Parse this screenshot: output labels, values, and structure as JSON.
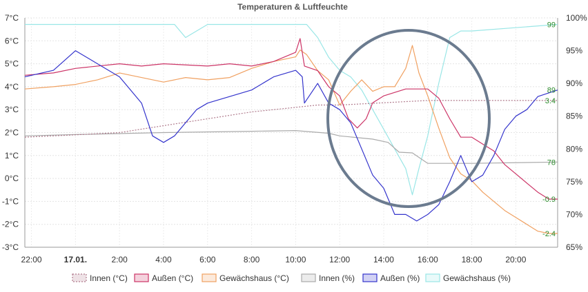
{
  "chart_data": {
    "type": "line",
    "title": "Temperaturen & Luftfeuchte",
    "x_ticks": [
      "22:00",
      "17.01.",
      "2:00",
      "4:00",
      "6:00",
      "8:00",
      "10:00",
      "12:00",
      "14:00",
      "16:00",
      "18:00",
      "20:00"
    ],
    "x_tick_bold": "17.01.",
    "x_range_hours": [
      -2.3,
      21.9
    ],
    "y_left": {
      "ticks": [
        "7°C",
        "6°C",
        "5°C",
        "4°C",
        "3°C",
        "2°C",
        "1°C",
        "0°C",
        "-1°C",
        "-2°C",
        "-3°C"
      ],
      "range": [
        -3,
        7
      ]
    },
    "y_right": {
      "ticks": [
        "100%",
        "95%",
        "90%",
        "85%",
        "80%",
        "75%",
        "70%",
        "65%"
      ],
      "range": [
        65,
        100
      ]
    },
    "series": [
      {
        "name": "Innen (°C)",
        "axis": "left",
        "color": "#b07a8c",
        "dashed": true,
        "points": [
          [
            -2.3,
            1.8
          ],
          [
            0,
            1.9
          ],
          [
            2,
            2.0
          ],
          [
            4,
            2.3
          ],
          [
            6,
            2.6
          ],
          [
            8,
            2.9
          ],
          [
            10,
            3.1
          ],
          [
            11,
            3.2
          ],
          [
            12,
            3.2
          ],
          [
            14,
            3.3
          ],
          [
            16,
            3.4
          ],
          [
            18,
            3.4
          ],
          [
            20,
            3.4
          ],
          [
            21.9,
            3.4
          ]
        ]
      },
      {
        "name": "Außen (°C)",
        "axis": "left",
        "color": "#cc3366",
        "points": [
          [
            -2.3,
            4.5
          ],
          [
            -1,
            4.6
          ],
          [
            0,
            4.8
          ],
          [
            2,
            5.0
          ],
          [
            3,
            4.9
          ],
          [
            4,
            5.0
          ],
          [
            6,
            4.9
          ],
          [
            7,
            5.0
          ],
          [
            8,
            4.9
          ],
          [
            9,
            5.1
          ],
          [
            10,
            5.5
          ],
          [
            10.2,
            6.1
          ],
          [
            10.4,
            4.9
          ],
          [
            11,
            4.7
          ],
          [
            11.5,
            4.0
          ],
          [
            12,
            3.6
          ],
          [
            12.4,
            2.6
          ],
          [
            12.8,
            2.2
          ],
          [
            13.2,
            2.6
          ],
          [
            13.5,
            3.3
          ],
          [
            14,
            3.6
          ],
          [
            15,
            3.9
          ],
          [
            16,
            3.9
          ],
          [
            16.5,
            3.5
          ],
          [
            17,
            2.6
          ],
          [
            17.5,
            1.8
          ],
          [
            18,
            1.8
          ],
          [
            18.5,
            1.5
          ],
          [
            19,
            1.2
          ],
          [
            19.5,
            0.6
          ],
          [
            20,
            0.2
          ],
          [
            20.5,
            -0.2
          ],
          [
            21,
            -0.6
          ],
          [
            21.5,
            -0.9
          ],
          [
            21.9,
            -0.9
          ]
        ]
      },
      {
        "name": "Gewächshaus (°C)",
        "axis": "left",
        "color": "#f0a060",
        "points": [
          [
            -2.3,
            3.9
          ],
          [
            -1,
            4.0
          ],
          [
            0,
            4.1
          ],
          [
            1,
            4.3
          ],
          [
            2,
            4.6
          ],
          [
            3,
            4.4
          ],
          [
            4,
            4.2
          ],
          [
            5,
            4.4
          ],
          [
            6,
            4.3
          ],
          [
            7,
            4.4
          ],
          [
            8,
            4.8
          ],
          [
            9,
            5.1
          ],
          [
            10,
            5.3
          ],
          [
            10.2,
            5.6
          ],
          [
            10.5,
            5.4
          ],
          [
            11,
            4.7
          ],
          [
            11.5,
            4.3
          ],
          [
            12,
            3.2
          ],
          [
            12.5,
            3.8
          ],
          [
            13,
            4.3
          ],
          [
            13.5,
            3.8
          ],
          [
            14,
            4.0
          ],
          [
            14.5,
            4.0
          ],
          [
            15,
            4.8
          ],
          [
            15.3,
            5.8
          ],
          [
            15.6,
            4.6
          ],
          [
            16,
            3.6
          ],
          [
            16.5,
            2.2
          ],
          [
            17,
            0.9
          ],
          [
            17.5,
            0.2
          ],
          [
            18,
            -0.1
          ],
          [
            18.5,
            -0.6
          ],
          [
            19,
            -1.0
          ],
          [
            19.5,
            -1.4
          ],
          [
            20,
            -1.7
          ],
          [
            20.5,
            -2.0
          ],
          [
            21,
            -2.3
          ],
          [
            21.5,
            -2.4
          ],
          [
            21.9,
            -2.4
          ]
        ]
      },
      {
        "name": "Innen (%)",
        "axis": "right",
        "color": "#aaaaaa",
        "points": [
          [
            -2.3,
            82
          ],
          [
            0,
            82.2
          ],
          [
            4,
            82.5
          ],
          [
            8,
            82.7
          ],
          [
            10,
            82.8
          ],
          [
            11.5,
            82.4
          ],
          [
            12,
            82
          ],
          [
            13.5,
            81.5
          ],
          [
            14.2,
            81
          ],
          [
            14.7,
            79.5
          ],
          [
            15.3,
            79.4
          ],
          [
            16,
            77.8
          ],
          [
            18,
            77.8
          ],
          [
            21.9,
            78
          ]
        ]
      },
      {
        "name": "Außen (%)",
        "axis": "right",
        "color": "#3333cc",
        "points": [
          [
            -2.3,
            91
          ],
          [
            -1,
            92
          ],
          [
            0,
            95
          ],
          [
            1,
            93
          ],
          [
            2,
            91
          ],
          [
            3,
            87
          ],
          [
            3.5,
            82
          ],
          [
            4,
            81
          ],
          [
            4.5,
            82
          ],
          [
            5,
            84
          ],
          [
            5.5,
            86
          ],
          [
            6,
            87
          ],
          [
            7,
            88
          ],
          [
            8,
            89
          ],
          [
            9,
            91
          ],
          [
            10,
            92
          ],
          [
            10.3,
            91
          ],
          [
            10.4,
            87
          ],
          [
            11,
            90
          ],
          [
            11.5,
            87
          ],
          [
            12,
            86
          ],
          [
            12.5,
            84
          ],
          [
            13,
            80
          ],
          [
            13.5,
            76
          ],
          [
            14,
            74
          ],
          [
            14.5,
            70
          ],
          [
            15,
            70
          ],
          [
            15.5,
            69
          ],
          [
            16,
            70
          ],
          [
            16.5,
            71.5
          ],
          [
            17,
            75
          ],
          [
            17.5,
            79
          ],
          [
            18,
            75
          ],
          [
            18.5,
            76
          ],
          [
            19,
            79
          ],
          [
            19.5,
            83
          ],
          [
            20,
            85
          ],
          [
            20.5,
            86
          ],
          [
            21,
            88
          ],
          [
            21.9,
            89
          ]
        ]
      },
      {
        "name": "Gewächshaus (%)",
        "axis": "right",
        "color": "#99e6e6",
        "points": [
          [
            -2.3,
            99
          ],
          [
            4.5,
            99
          ],
          [
            5,
            97
          ],
          [
            5.5,
            98
          ],
          [
            6,
            99
          ],
          [
            9,
            99
          ],
          [
            10.5,
            99
          ],
          [
            11,
            97
          ],
          [
            11.5,
            94
          ],
          [
            12,
            92
          ],
          [
            12.5,
            91
          ],
          [
            13,
            89
          ],
          [
            13.5,
            86
          ],
          [
            14,
            83
          ],
          [
            14.5,
            80
          ],
          [
            15,
            77
          ],
          [
            15.3,
            73
          ],
          [
            15.6,
            77
          ],
          [
            16,
            82
          ],
          [
            16.5,
            90
          ],
          [
            17,
            97
          ],
          [
            17.5,
            98
          ],
          [
            18,
            98
          ],
          [
            21.9,
            99
          ]
        ]
      }
    ],
    "end_labels_left": [
      "3.4",
      "-0.9",
      "-2.4"
    ],
    "end_labels_right": [
      "99",
      "89",
      "78"
    ],
    "legend_position": "bottom",
    "annotation": "circle"
  }
}
